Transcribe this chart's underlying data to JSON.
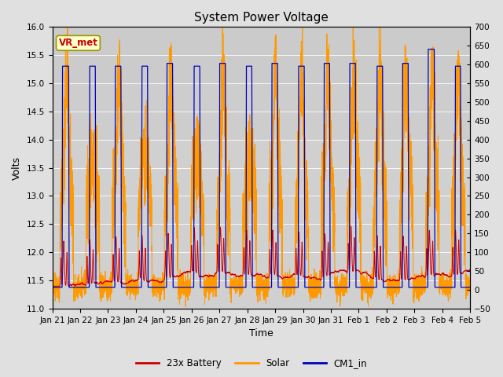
{
  "title": "System Power Voltage",
  "ylabel_left": "Volts",
  "xlabel": "Time",
  "ylim_left": [
    11.0,
    16.0
  ],
  "ylim_right": [
    -50,
    700
  ],
  "yticks_left": [
    11.0,
    11.5,
    12.0,
    12.5,
    13.0,
    13.5,
    14.0,
    14.5,
    15.0,
    15.5,
    16.0
  ],
  "yticks_right": [
    -50,
    0,
    50,
    100,
    150,
    200,
    250,
    300,
    350,
    400,
    450,
    500,
    550,
    600,
    650,
    700
  ],
  "xtick_labels": [
    "Jan 21",
    "Jan 22",
    "Jan 23",
    "Jan 24",
    "Jan 25",
    "Jan 26",
    "Jan 27",
    "Jan 28",
    "Jan 29",
    "Jan 30",
    "Jan 31",
    "Feb 1",
    "Feb 2",
    "Feb 3",
    "Feb 4",
    "Feb 5"
  ],
  "fig_bg_color": "#e0e0e0",
  "plot_bg_color": "#d0d0d0",
  "upper_bg_color": "#c8c8c8",
  "battery_color": "#cc0000",
  "solar_color": "#ff9900",
  "cm1_color": "#0000bb",
  "legend_labels": [
    "23x Battery",
    "Solar",
    "CM1_in"
  ],
  "vr_met_label": "VR_met",
  "vr_met_bg": "#ffffcc",
  "vr_met_border": "#999900",
  "vr_met_text_color": "#cc0000",
  "n_days": 16,
  "grid_color": "#ffffff",
  "title_fontsize": 11,
  "axis_fontsize": 9,
  "tick_fontsize": 7.5
}
